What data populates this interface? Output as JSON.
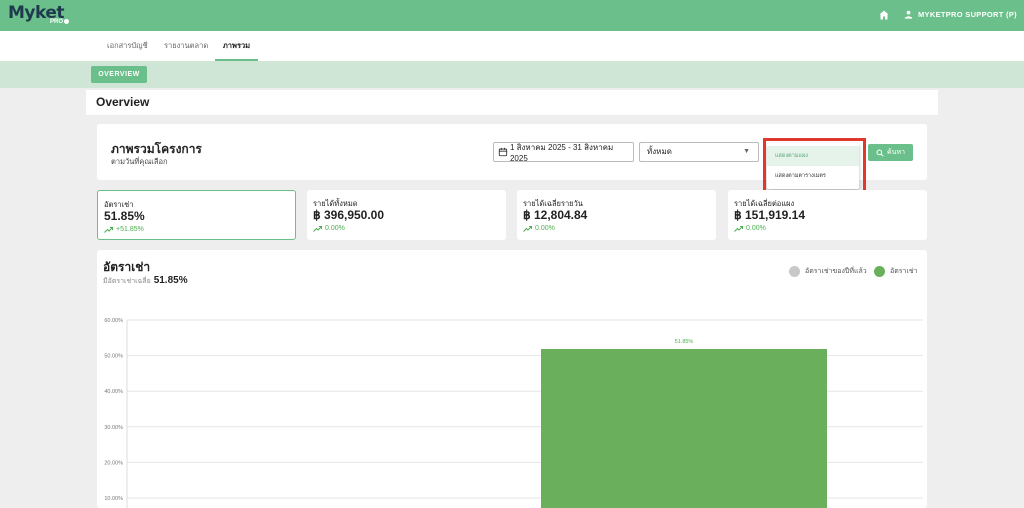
{
  "app": {
    "logo_text": "Myket",
    "logo_sub": "PRO",
    "user_label": "MYKETPRO SUPPORT (P)",
    "icons": {
      "home": "home-icon",
      "user": "user-icon"
    },
    "colors": {
      "brand": "#6abf8a",
      "subbar": "#cfe6d6",
      "highlight": "#e0382a",
      "bar": "#6aaf5c",
      "prev_year": "#c8c8c8"
    }
  },
  "nav": {
    "tabs": [
      {
        "label": "เอกสารบัญชี",
        "active": false
      },
      {
        "label": "รายงานตลาด",
        "active": false
      },
      {
        "label": "ภาพรวม",
        "active": true
      }
    ]
  },
  "subbar": {
    "button_label": "OVERVIEW"
  },
  "page": {
    "title": "Overview"
  },
  "filter": {
    "title": "ภาพรวมโครงการ",
    "subtitle": "ตามวันที่คุณเลือก",
    "date_range": "1 สิงหาคม 2025 - 31 สิงหาคม 2025",
    "select_value": "ทั้งหมด",
    "search_label": "ค้นหา",
    "dropdown_options": [
      {
        "label": "แสดงตามแผง",
        "selected": true
      },
      {
        "label": "แสดงตามตารางเมตร",
        "selected": false
      }
    ]
  },
  "metrics": [
    {
      "label": "อัตราเช่า",
      "value": "51.85%",
      "change": "+51.85%",
      "active": true
    },
    {
      "label": "รายได้ทั้งหมด",
      "value": "฿ 396,950.00",
      "change": "0.00%",
      "active": false
    },
    {
      "label": "รายได้เฉลี่ยรายวัน",
      "value": "฿ 12,804.84",
      "change": "0.00%",
      "active": false
    },
    {
      "label": "รายได้เฉลี่ยต่อแผง",
      "value": "฿ 151,919.14",
      "change": "0.00%",
      "active": false
    }
  ],
  "chart": {
    "title": "อัตราเช่า",
    "avg_label": "มีอัตราเช่าเฉลี่ย",
    "avg_value": "51.85%",
    "legend": [
      {
        "name": "อัตราเช่าของปีที่แล้ว",
        "color": "#c8c8c8"
      },
      {
        "name": "อัตราเช่า",
        "color": "#6aaf5c"
      }
    ]
  },
  "chart_data": {
    "type": "bar",
    "y_ticks": [
      "60.00%",
      "50.00%",
      "40.00%",
      "30.00%",
      "20.00%",
      "10.00%"
    ],
    "ylim": [
      0,
      60
    ],
    "series": [
      {
        "name": "อัตราเช่า",
        "values": [
          51.85
        ]
      }
    ],
    "data_labels": [
      "51.85%"
    ],
    "grid": true
  }
}
